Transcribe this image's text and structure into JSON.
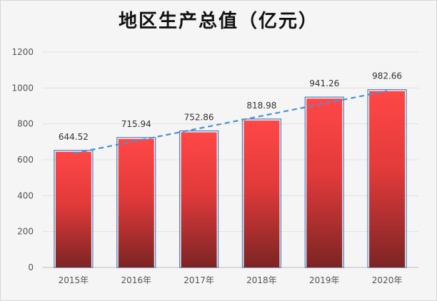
{
  "chart_data": {
    "type": "bar",
    "title": "地区生产总值（亿元）",
    "categories": [
      "2015年",
      "2016年",
      "2017年",
      "2018年",
      "2019年",
      "2020年"
    ],
    "values": [
      644.52,
      715.94,
      752.86,
      818.98,
      941.26,
      982.66
    ],
    "data_labels": [
      "644.52",
      "715.94",
      "752.86",
      "818.98",
      "941.26",
      "982.66"
    ],
    "ylim": [
      0,
      1200
    ],
    "yticks": [
      "0",
      "200",
      "400",
      "600",
      "800",
      "1000",
      "1200"
    ],
    "ytick_values": [
      0,
      200,
      400,
      600,
      800,
      1000,
      1200
    ],
    "grid": true,
    "trendline": "linear",
    "colors": {
      "bar_top": "#ff4747",
      "bar_bottom": "#7c2424",
      "bar_outline": "#4a7fc0",
      "trendline": "#4a90d9",
      "grid": "#e2e2e2"
    }
  }
}
